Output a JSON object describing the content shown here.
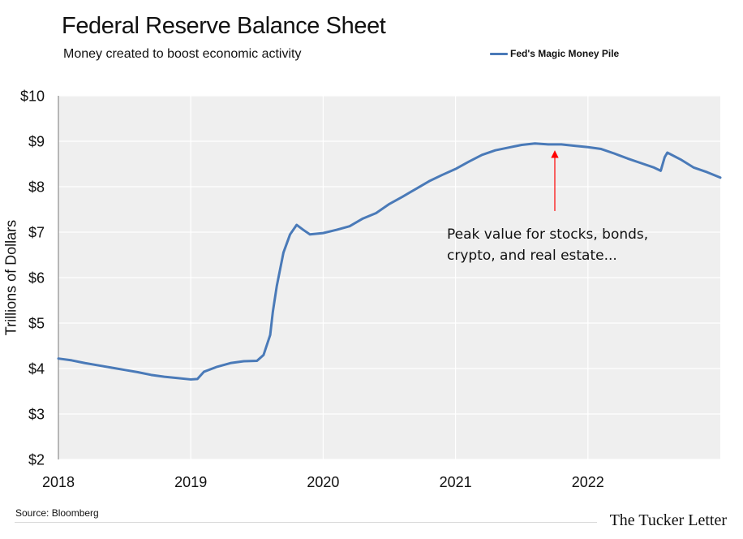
{
  "header": {
    "title": "Federal Reserve Balance Sheet",
    "subtitle": "Money created to boost economic activity"
  },
  "footer": {
    "source": "Source: Bloomberg",
    "brand": "The Tucker Letter"
  },
  "colors": {
    "line": "#4a7ab8",
    "plot_background": "#efefef",
    "grid": "#ffffff",
    "annotation_arrow": "#ff0000"
  },
  "chart_data": {
    "type": "line",
    "title": "Federal Reserve Balance Sheet",
    "subtitle": "Money created to boost economic activity",
    "xlabel": "",
    "ylabel": "Trillions of Dollars",
    "xlim": [
      2018,
      2023
    ],
    "ylim": [
      2,
      10
    ],
    "x_ticks": [
      2018,
      2019,
      2020,
      2021,
      2022
    ],
    "x_tick_labels": [
      "2018",
      "2019",
      "2020",
      "2021",
      "2022"
    ],
    "y_ticks": [
      2,
      3,
      4,
      5,
      6,
      7,
      8,
      9,
      10
    ],
    "y_tick_labels": [
      "$2",
      "$3",
      "$4",
      "$5",
      "$6",
      "$7",
      "$8",
      "$9",
      "$10"
    ],
    "grid": true,
    "legend_position": "top-right",
    "series": [
      {
        "name": "Fed's Magic Money Pile",
        "color": "#4a7ab8",
        "x": [
          2018.0,
          2018.1,
          2018.2,
          2018.3,
          2018.4,
          2018.5,
          2018.6,
          2018.7,
          2018.8,
          2018.9,
          2019.0,
          2019.05,
          2019.1,
          2019.2,
          2019.3,
          2019.4,
          2019.5,
          2019.55,
          2019.6,
          2019.62,
          2019.65,
          2019.7,
          2019.75,
          2019.8,
          2019.85,
          2019.9,
          2020.0,
          2020.1,
          2020.2,
          2020.3,
          2020.4,
          2020.5,
          2020.6,
          2020.7,
          2020.8,
          2020.9,
          2021.0,
          2021.1,
          2021.2,
          2021.3,
          2021.4,
          2021.5,
          2021.6,
          2021.7,
          2021.8,
          2021.9,
          2022.0,
          2022.1,
          2022.2,
          2022.3,
          2022.4,
          2022.5,
          2022.55,
          2022.58,
          2022.6,
          2022.7,
          2022.8,
          2022.9,
          2023.0
        ],
        "values": [
          4.22,
          4.18,
          4.12,
          4.07,
          4.02,
          3.97,
          3.92,
          3.86,
          3.82,
          3.79,
          3.76,
          3.77,
          3.93,
          4.04,
          4.12,
          4.16,
          4.17,
          4.3,
          4.74,
          5.25,
          5.82,
          6.55,
          6.95,
          7.16,
          7.05,
          6.95,
          6.98,
          7.05,
          7.13,
          7.3,
          7.42,
          7.62,
          7.78,
          7.95,
          8.12,
          8.26,
          8.39,
          8.55,
          8.7,
          8.8,
          8.86,
          8.92,
          8.95,
          8.93,
          8.93,
          8.9,
          8.87,
          8.83,
          8.73,
          8.62,
          8.52,
          8.42,
          8.35,
          8.65,
          8.75,
          8.6,
          8.42,
          8.32,
          8.2
        ]
      }
    ],
    "annotations": [
      {
        "text": "Peak value for stocks, bonds,\ncrypto, and real estate...",
        "arrow_to": {
          "x": 2021.75,
          "y": 8.93
        }
      }
    ]
  }
}
